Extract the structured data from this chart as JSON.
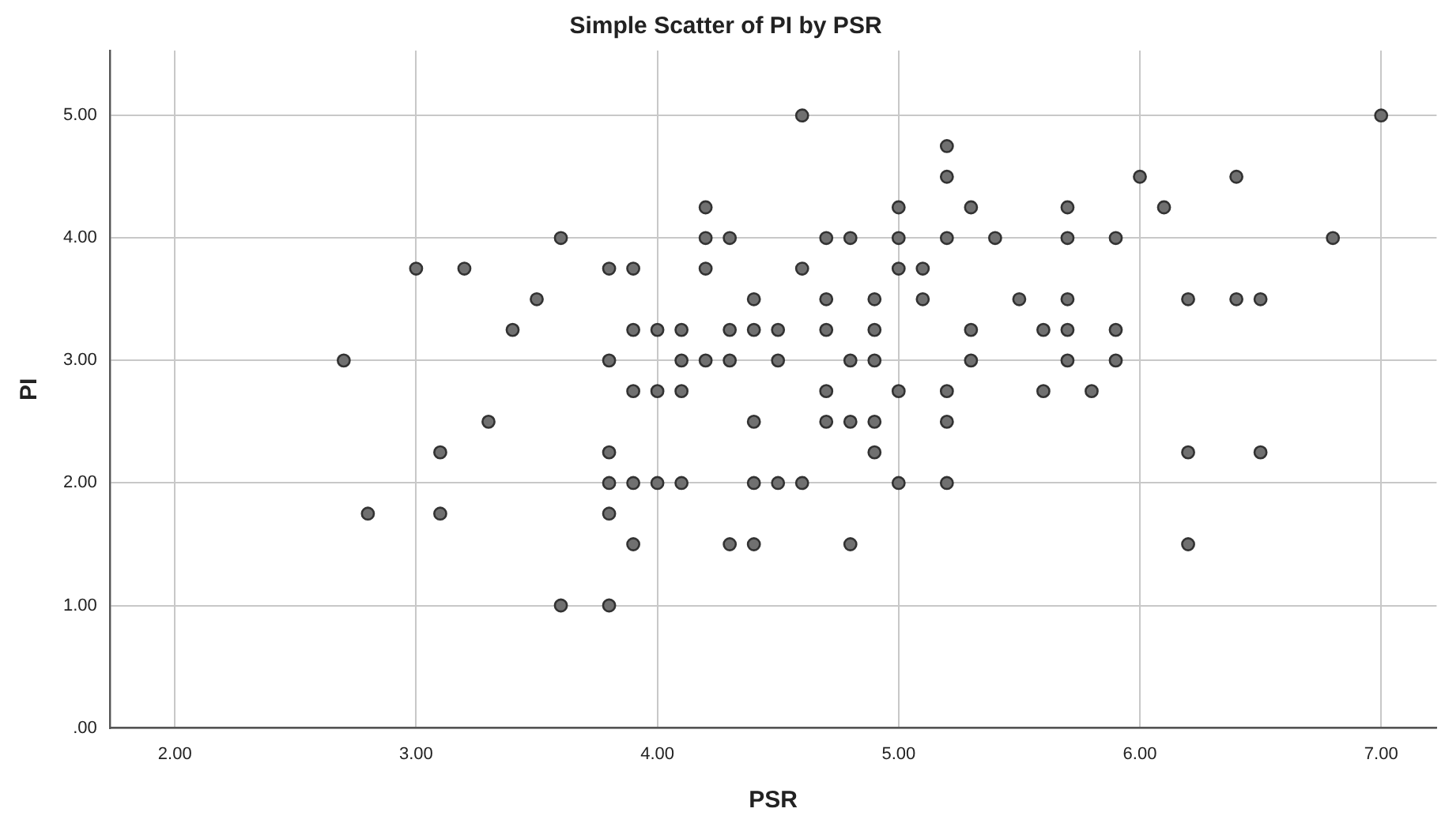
{
  "chart_data": {
    "type": "scatter",
    "title": "Simple Scatter of PI by PSR",
    "xlabel": "PSR",
    "ylabel": "PI",
    "xlim": [
      1.73,
      7.23
    ],
    "ylim": [
      0,
      5.53
    ],
    "xticks": [
      {
        "value": 2,
        "label": "2.00"
      },
      {
        "value": 3,
        "label": "3.00"
      },
      {
        "value": 4,
        "label": "4.00"
      },
      {
        "value": 5,
        "label": "5.00"
      },
      {
        "value": 6,
        "label": "6.00"
      },
      {
        "value": 7,
        "label": "7.00"
      }
    ],
    "yticks": [
      {
        "value": 0,
        "label": ".00"
      },
      {
        "value": 1,
        "label": "1.00"
      },
      {
        "value": 2,
        "label": "2.00"
      },
      {
        "value": 3,
        "label": "3.00"
      },
      {
        "value": 4,
        "label": "4.00"
      },
      {
        "value": 5,
        "label": "5.00"
      }
    ],
    "grid": true,
    "legend": false,
    "marker": "circle",
    "series": [
      {
        "color": "#707070",
        "x": [
          7.0,
          4.6,
          5.2,
          5.2,
          6.0,
          6.4,
          4.2,
          5.0,
          5.3,
          5.7,
          6.1,
          3.6,
          4.2,
          4.3,
          4.7,
          4.8,
          5.0,
          5.2,
          5.4,
          5.7,
          5.9,
          6.8,
          3.0,
          3.2,
          3.8,
          3.9,
          4.2,
          4.6,
          5.0,
          5.1,
          3.5,
          4.4,
          4.7,
          4.9,
          5.1,
          5.5,
          5.7,
          6.2,
          6.4,
          6.5,
          3.4,
          3.9,
          4.0,
          4.1,
          4.3,
          4.4,
          4.5,
          4.7,
          4.9,
          5.3,
          5.6,
          5.7,
          5.9,
          2.7,
          3.8,
          4.1,
          4.2,
          4.3,
          4.5,
          4.8,
          4.9,
          5.3,
          5.7,
          5.9,
          3.9,
          4.0,
          4.1,
          4.7,
          5.0,
          5.2,
          5.6,
          5.8,
          3.3,
          4.4,
          4.7,
          4.8,
          4.9,
          5.2,
          3.1,
          3.8,
          4.9,
          6.2,
          6.5,
          3.8,
          3.9,
          4.0,
          4.1,
          4.4,
          4.5,
          4.6,
          5.0,
          5.2,
          2.8,
          3.1,
          3.8,
          3.9,
          4.3,
          4.4,
          4.8,
          6.2,
          3.6,
          3.8
        ],
        "values": [
          5.0,
          5.0,
          4.75,
          4.5,
          4.5,
          4.5,
          4.25,
          4.25,
          4.25,
          4.25,
          4.25,
          4.0,
          4.0,
          4.0,
          4.0,
          4.0,
          4.0,
          4.0,
          4.0,
          4.0,
          4.0,
          4.0,
          3.75,
          3.75,
          3.75,
          3.75,
          3.75,
          3.75,
          3.75,
          3.75,
          3.5,
          3.5,
          3.5,
          3.5,
          3.5,
          3.5,
          3.5,
          3.5,
          3.5,
          3.5,
          3.25,
          3.25,
          3.25,
          3.25,
          3.25,
          3.25,
          3.25,
          3.25,
          3.25,
          3.25,
          3.25,
          3.25,
          3.25,
          3.0,
          3.0,
          3.0,
          3.0,
          3.0,
          3.0,
          3.0,
          3.0,
          3.0,
          3.0,
          3.0,
          2.75,
          2.75,
          2.75,
          2.75,
          2.75,
          2.75,
          2.75,
          2.75,
          2.5,
          2.5,
          2.5,
          2.5,
          2.5,
          2.5,
          2.25,
          2.25,
          2.25,
          2.25,
          2.25,
          2.0,
          2.0,
          2.0,
          2.0,
          2.0,
          2.0,
          2.0,
          2.0,
          2.0,
          1.75,
          1.75,
          1.75,
          1.5,
          1.5,
          1.5,
          1.5,
          1.5,
          1.0,
          1.0
        ]
      }
    ]
  }
}
